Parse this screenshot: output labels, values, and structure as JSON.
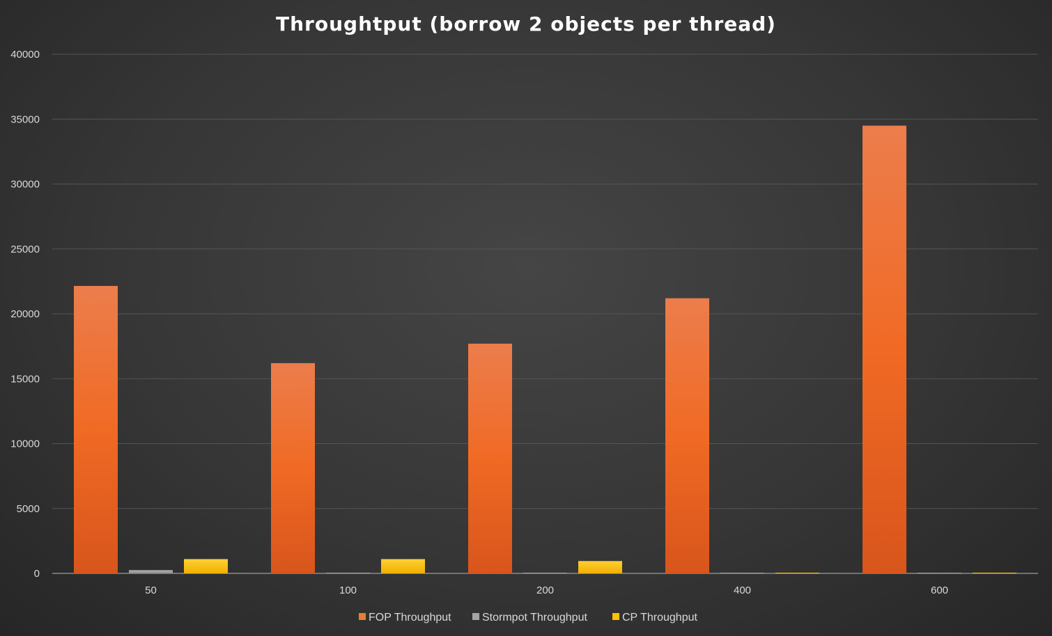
{
  "chart_data": {
    "type": "bar",
    "title": "Throughtput (borrow 2 objects per thread)",
    "xlabel": "",
    "ylabel": "",
    "categories": [
      "50",
      "100",
      "200",
      "400",
      "600"
    ],
    "ylim": [
      0,
      40000
    ],
    "yticks": [
      0,
      5000,
      10000,
      15000,
      20000,
      25000,
      30000,
      35000,
      40000
    ],
    "grid": true,
    "legend_position": "bottom",
    "series": [
      {
        "name": "FOP Throughput",
        "color": "#ed7d31",
        "values": [
          22150,
          16200,
          17700,
          21200,
          34500
        ]
      },
      {
        "name": "Stormpot Throughput",
        "color": "#a5a5a5",
        "values": [
          250,
          30,
          10,
          10,
          10
        ]
      },
      {
        "name": "CP Throughput",
        "color": "#ffc000",
        "values": [
          1100,
          1100,
          950,
          40,
          40
        ]
      }
    ]
  }
}
